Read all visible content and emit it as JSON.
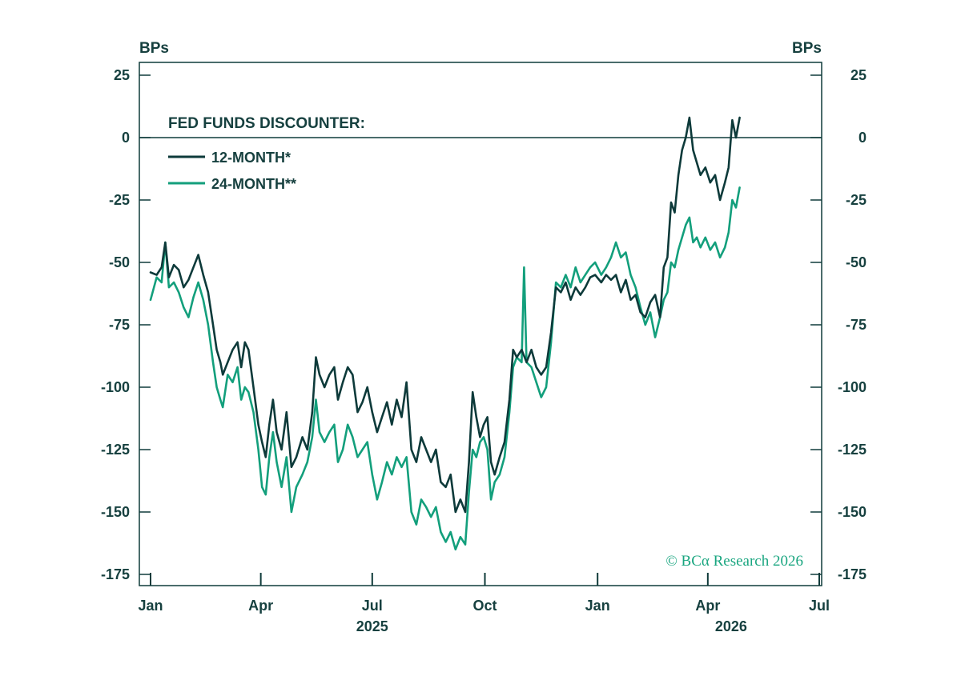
{
  "colors": {
    "axis": "#0f3b3a",
    "series_12m": "#0d3a3a",
    "series_24m": "#139f7c",
    "text": "#16403f",
    "copyright": "#1aa680"
  },
  "copyright": "© BCα Research 2026",
  "chart_data": {
    "type": "line",
    "title": "",
    "ylabel_left": "BPs",
    "ylabel_right": "BPs",
    "legend_title": "FED FUNDS DISCOUNTER:",
    "legend_position": "top-left",
    "grid": false,
    "ylim": [
      -175,
      30
    ],
    "yticks": [
      25,
      0,
      -25,
      -50,
      -75,
      -100,
      -125,
      -150,
      -175
    ],
    "ytick_labels": [
      "25",
      "0",
      "-25",
      "-50",
      "-75",
      "-100",
      "-125",
      "-150",
      "-175"
    ],
    "xlim": [
      "2025-01-01",
      "2026-07-01"
    ],
    "xticks": [
      {
        "date": "2025-01-01",
        "label": "Jan"
      },
      {
        "date": "2025-04-01",
        "label": "Apr"
      },
      {
        "date": "2025-07-01",
        "label": "Jul"
      },
      {
        "date": "2025-10-01",
        "label": "Oct"
      },
      {
        "date": "2026-01-01",
        "label": "Jan"
      },
      {
        "date": "2026-04-01",
        "label": "Apr"
      },
      {
        "date": "2026-07-01",
        "label": "Jul"
      }
    ],
    "year_labels": [
      {
        "date": "2025-07-01",
        "label": "2025"
      },
      {
        "date": "2026-04-20",
        "label": "2026"
      }
    ],
    "series": [
      {
        "name": "12-MONTH*",
        "points": [
          [
            "2025-01-01",
            -54
          ],
          [
            "2025-01-06",
            -55
          ],
          [
            "2025-01-10",
            -52
          ],
          [
            "2025-01-13",
            -42
          ],
          [
            "2025-01-16",
            -56
          ],
          [
            "2025-01-20",
            -51
          ],
          [
            "2025-01-24",
            -53
          ],
          [
            "2025-01-28",
            -60
          ],
          [
            "2025-02-01",
            -57
          ],
          [
            "2025-02-05",
            -52
          ],
          [
            "2025-02-09",
            -47
          ],
          [
            "2025-02-13",
            -55
          ],
          [
            "2025-02-17",
            -62
          ],
          [
            "2025-02-21",
            -75
          ],
          [
            "2025-02-24",
            -85
          ],
          [
            "2025-02-27",
            -90
          ],
          [
            "2025-03-01",
            -95
          ],
          [
            "2025-03-05",
            -90
          ],
          [
            "2025-03-09",
            -85
          ],
          [
            "2025-03-13",
            -82
          ],
          [
            "2025-03-16",
            -92
          ],
          [
            "2025-03-19",
            -82
          ],
          [
            "2025-03-22",
            -85
          ],
          [
            "2025-03-26",
            -100
          ],
          [
            "2025-03-30",
            -115
          ],
          [
            "2025-04-02",
            -122
          ],
          [
            "2025-04-05",
            -128
          ],
          [
            "2025-04-08",
            -115
          ],
          [
            "2025-04-11",
            -105
          ],
          [
            "2025-04-14",
            -118
          ],
          [
            "2025-04-18",
            -125
          ],
          [
            "2025-04-22",
            -110
          ],
          [
            "2025-04-26",
            -132
          ],
          [
            "2025-04-30",
            -128
          ],
          [
            "2025-05-05",
            -120
          ],
          [
            "2025-05-09",
            -125
          ],
          [
            "2025-05-13",
            -110
          ],
          [
            "2025-05-16",
            -88
          ],
          [
            "2025-05-19",
            -95
          ],
          [
            "2025-05-23",
            -100
          ],
          [
            "2025-05-27",
            -95
          ],
          [
            "2025-05-31",
            -92
          ],
          [
            "2025-06-03",
            -105
          ],
          [
            "2025-06-07",
            -98
          ],
          [
            "2025-06-11",
            -92
          ],
          [
            "2025-06-15",
            -95
          ],
          [
            "2025-06-19",
            -110
          ],
          [
            "2025-06-23",
            -106
          ],
          [
            "2025-06-27",
            -100
          ],
          [
            "2025-07-01",
            -110
          ],
          [
            "2025-07-05",
            -118
          ],
          [
            "2025-07-09",
            -112
          ],
          [
            "2025-07-13",
            -106
          ],
          [
            "2025-07-17",
            -115
          ],
          [
            "2025-07-21",
            -105
          ],
          [
            "2025-07-25",
            -112
          ],
          [
            "2025-07-29",
            -98
          ],
          [
            "2025-08-02",
            -125
          ],
          [
            "2025-08-06",
            -130
          ],
          [
            "2025-08-10",
            -120
          ],
          [
            "2025-08-14",
            -125
          ],
          [
            "2025-08-18",
            -130
          ],
          [
            "2025-08-22",
            -125
          ],
          [
            "2025-08-26",
            -138
          ],
          [
            "2025-08-30",
            -140
          ],
          [
            "2025-09-03",
            -135
          ],
          [
            "2025-09-07",
            -150
          ],
          [
            "2025-09-11",
            -145
          ],
          [
            "2025-09-15",
            -150
          ],
          [
            "2025-09-18",
            -130
          ],
          [
            "2025-09-21",
            -102
          ],
          [
            "2025-09-24",
            -112
          ],
          [
            "2025-09-27",
            -120
          ],
          [
            "2025-09-30",
            -115
          ],
          [
            "2025-10-03",
            -112
          ],
          [
            "2025-10-06",
            -130
          ],
          [
            "2025-10-09",
            -135
          ],
          [
            "2025-10-13",
            -128
          ],
          [
            "2025-10-17",
            -122
          ],
          [
            "2025-10-21",
            -105
          ],
          [
            "2025-10-24",
            -85
          ],
          [
            "2025-10-27",
            -88
          ],
          [
            "2025-10-31",
            -85
          ],
          [
            "2025-11-04",
            -90
          ],
          [
            "2025-11-08",
            -85
          ],
          [
            "2025-11-12",
            -92
          ],
          [
            "2025-11-16",
            -95
          ],
          [
            "2025-11-20",
            -92
          ],
          [
            "2025-11-24",
            -78
          ],
          [
            "2025-11-28",
            -60
          ],
          [
            "2025-12-02",
            -62
          ],
          [
            "2025-12-06",
            -58
          ],
          [
            "2025-12-10",
            -65
          ],
          [
            "2025-12-14",
            -60
          ],
          [
            "2025-12-18",
            -63
          ],
          [
            "2025-12-22",
            -60
          ],
          [
            "2025-12-26",
            -56
          ],
          [
            "2025-12-30",
            -55
          ],
          [
            "2026-01-04",
            -58
          ],
          [
            "2026-01-08",
            -55
          ],
          [
            "2026-01-12",
            -57
          ],
          [
            "2026-01-16",
            -55
          ],
          [
            "2026-01-20",
            -62
          ],
          [
            "2026-01-24",
            -57
          ],
          [
            "2026-01-28",
            -65
          ],
          [
            "2026-02-01",
            -63
          ],
          [
            "2026-02-05",
            -70
          ],
          [
            "2026-02-09",
            -72
          ],
          [
            "2026-02-13",
            -66
          ],
          [
            "2026-02-17",
            -63
          ],
          [
            "2026-02-21",
            -72
          ],
          [
            "2026-02-24",
            -52
          ],
          [
            "2026-02-27",
            -48
          ],
          [
            "2026-03-02",
            -26
          ],
          [
            "2026-03-05",
            -30
          ],
          [
            "2026-03-08",
            -15
          ],
          [
            "2026-03-11",
            -5
          ],
          [
            "2026-03-14",
            0
          ],
          [
            "2026-03-17",
            8
          ],
          [
            "2026-03-20",
            -5
          ],
          [
            "2026-03-23",
            -10
          ],
          [
            "2026-03-26",
            -15
          ],
          [
            "2026-03-30",
            -12
          ],
          [
            "2026-04-03",
            -18
          ],
          [
            "2026-04-07",
            -15
          ],
          [
            "2026-04-11",
            -25
          ],
          [
            "2026-04-15",
            -18
          ],
          [
            "2026-04-18",
            -12
          ],
          [
            "2026-04-21",
            7
          ],
          [
            "2026-04-24",
            0
          ],
          [
            "2026-04-27",
            8
          ]
        ]
      },
      {
        "name": "24-MONTH**",
        "points": [
          [
            "2025-01-01",
            -65
          ],
          [
            "2025-01-06",
            -56
          ],
          [
            "2025-01-10",
            -58
          ],
          [
            "2025-01-13",
            -42
          ],
          [
            "2025-01-16",
            -60
          ],
          [
            "2025-01-20",
            -58
          ],
          [
            "2025-01-24",
            -62
          ],
          [
            "2025-01-28",
            -68
          ],
          [
            "2025-02-01",
            -72
          ],
          [
            "2025-02-05",
            -64
          ],
          [
            "2025-02-09",
            -58
          ],
          [
            "2025-02-13",
            -65
          ],
          [
            "2025-02-17",
            -75
          ],
          [
            "2025-02-21",
            -90
          ],
          [
            "2025-02-24",
            -100
          ],
          [
            "2025-02-27",
            -105
          ],
          [
            "2025-03-01",
            -108
          ],
          [
            "2025-03-05",
            -95
          ],
          [
            "2025-03-09",
            -98
          ],
          [
            "2025-03-13",
            -92
          ],
          [
            "2025-03-16",
            -105
          ],
          [
            "2025-03-19",
            -100
          ],
          [
            "2025-03-22",
            -102
          ],
          [
            "2025-03-26",
            -110
          ],
          [
            "2025-03-30",
            -125
          ],
          [
            "2025-04-02",
            -140
          ],
          [
            "2025-04-05",
            -143
          ],
          [
            "2025-04-08",
            -128
          ],
          [
            "2025-04-11",
            -118
          ],
          [
            "2025-04-14",
            -130
          ],
          [
            "2025-04-18",
            -140
          ],
          [
            "2025-04-22",
            -128
          ],
          [
            "2025-04-26",
            -150
          ],
          [
            "2025-04-30",
            -140
          ],
          [
            "2025-05-05",
            -135
          ],
          [
            "2025-05-09",
            -130
          ],
          [
            "2025-05-13",
            -120
          ],
          [
            "2025-05-16",
            -105
          ],
          [
            "2025-05-19",
            -118
          ],
          [
            "2025-05-23",
            -122
          ],
          [
            "2025-05-27",
            -118
          ],
          [
            "2025-05-31",
            -115
          ],
          [
            "2025-06-03",
            -130
          ],
          [
            "2025-06-07",
            -125
          ],
          [
            "2025-06-11",
            -115
          ],
          [
            "2025-06-15",
            -120
          ],
          [
            "2025-06-19",
            -128
          ],
          [
            "2025-06-23",
            -125
          ],
          [
            "2025-06-27",
            -122
          ],
          [
            "2025-07-01",
            -135
          ],
          [
            "2025-07-05",
            -145
          ],
          [
            "2025-07-09",
            -138
          ],
          [
            "2025-07-13",
            -130
          ],
          [
            "2025-07-17",
            -135
          ],
          [
            "2025-07-21",
            -128
          ],
          [
            "2025-07-25",
            -132
          ],
          [
            "2025-07-29",
            -128
          ],
          [
            "2025-08-02",
            -150
          ],
          [
            "2025-08-06",
            -155
          ],
          [
            "2025-08-10",
            -145
          ],
          [
            "2025-08-14",
            -148
          ],
          [
            "2025-08-18",
            -152
          ],
          [
            "2025-08-22",
            -148
          ],
          [
            "2025-08-26",
            -158
          ],
          [
            "2025-08-30",
            -162
          ],
          [
            "2025-09-03",
            -158
          ],
          [
            "2025-09-07",
            -165
          ],
          [
            "2025-09-11",
            -160
          ],
          [
            "2025-09-15",
            -163
          ],
          [
            "2025-09-18",
            -142
          ],
          [
            "2025-09-21",
            -125
          ],
          [
            "2025-09-24",
            -128
          ],
          [
            "2025-09-27",
            -122
          ],
          [
            "2025-09-30",
            -120
          ],
          [
            "2025-10-03",
            -125
          ],
          [
            "2025-10-06",
            -145
          ],
          [
            "2025-10-09",
            -138
          ],
          [
            "2025-10-13",
            -135
          ],
          [
            "2025-10-17",
            -128
          ],
          [
            "2025-10-21",
            -110
          ],
          [
            "2025-10-24",
            -92
          ],
          [
            "2025-10-27",
            -88
          ],
          [
            "2025-10-31",
            -90
          ],
          [
            "2025-11-02",
            -52
          ],
          [
            "2025-11-04",
            -90
          ],
          [
            "2025-11-08",
            -92
          ],
          [
            "2025-11-12",
            -98
          ],
          [
            "2025-11-16",
            -104
          ],
          [
            "2025-11-20",
            -100
          ],
          [
            "2025-11-24",
            -82
          ],
          [
            "2025-11-28",
            -58
          ],
          [
            "2025-12-02",
            -60
          ],
          [
            "2025-12-06",
            -55
          ],
          [
            "2025-12-10",
            -60
          ],
          [
            "2025-12-14",
            -52
          ],
          [
            "2025-12-18",
            -58
          ],
          [
            "2025-12-22",
            -55
          ],
          [
            "2025-12-26",
            -52
          ],
          [
            "2025-12-30",
            -50
          ],
          [
            "2026-01-04",
            -55
          ],
          [
            "2026-01-08",
            -52
          ],
          [
            "2026-01-12",
            -48
          ],
          [
            "2026-01-16",
            -42
          ],
          [
            "2026-01-20",
            -48
          ],
          [
            "2026-01-24",
            -46
          ],
          [
            "2026-01-28",
            -55
          ],
          [
            "2026-02-01",
            -60
          ],
          [
            "2026-02-05",
            -68
          ],
          [
            "2026-02-09",
            -75
          ],
          [
            "2026-02-13",
            -70
          ],
          [
            "2026-02-17",
            -80
          ],
          [
            "2026-02-21",
            -72
          ],
          [
            "2026-02-24",
            -65
          ],
          [
            "2026-02-27",
            -62
          ],
          [
            "2026-03-02",
            -50
          ],
          [
            "2026-03-05",
            -52
          ],
          [
            "2026-03-08",
            -45
          ],
          [
            "2026-03-11",
            -40
          ],
          [
            "2026-03-14",
            -35
          ],
          [
            "2026-03-17",
            -32
          ],
          [
            "2026-03-20",
            -42
          ],
          [
            "2026-03-23",
            -40
          ],
          [
            "2026-03-26",
            -44
          ],
          [
            "2026-03-30",
            -40
          ],
          [
            "2026-04-03",
            -45
          ],
          [
            "2026-04-07",
            -42
          ],
          [
            "2026-04-11",
            -48
          ],
          [
            "2026-04-15",
            -44
          ],
          [
            "2026-04-18",
            -38
          ],
          [
            "2026-04-21",
            -25
          ],
          [
            "2026-04-24",
            -28
          ],
          [
            "2026-04-27",
            -20
          ]
        ]
      }
    ]
  }
}
